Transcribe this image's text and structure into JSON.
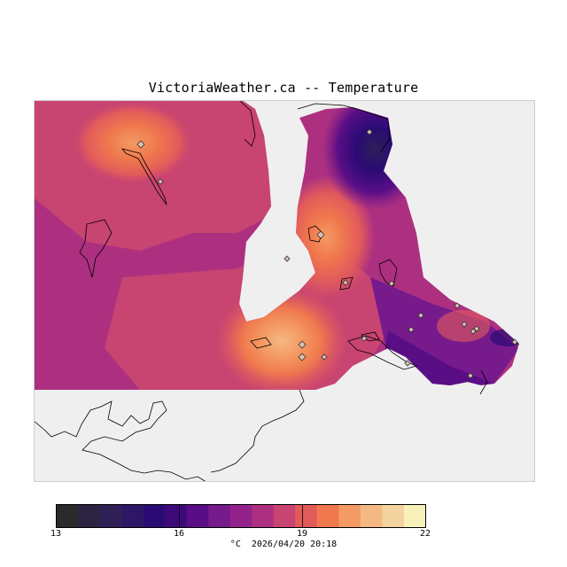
{
  "header": {
    "title": "VictoriaWeather.ca -- Temperature"
  },
  "legend": {
    "units_label": "°C",
    "timestamp": "2026/04/20 20:18",
    "min": 13,
    "max": 22,
    "tick_labels": [
      "13",
      "16",
      "19",
      "22"
    ],
    "colors": [
      "#2a2a2a",
      "#2b2340",
      "#2e1f55",
      "#2d1766",
      "#2a0b74",
      "#3d0a7a",
      "#5a0e86",
      "#761a8c",
      "#93238a",
      "#ad3080",
      "#c84471",
      "#e25b5b",
      "#ef784d",
      "#f49a63",
      "#f4b884",
      "#f3d39f",
      "#f7f0b8"
    ]
  },
  "map": {
    "station_count": 20,
    "colors": {
      "background": "#efefef",
      "land_outline": "#000000",
      "station_marker_fill": "#d9c2b3",
      "station_marker_stroke": "#333333"
    }
  }
}
